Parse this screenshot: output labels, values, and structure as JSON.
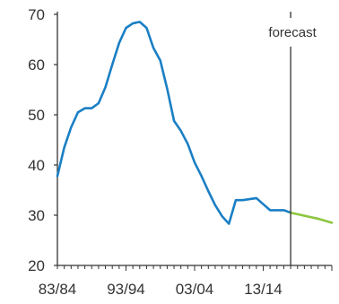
{
  "chart_data": {
    "type": "line",
    "title": "",
    "xlabel": "",
    "ylabel": "",
    "ylim": [
      20,
      70
    ],
    "yticks": [
      20,
      30,
      40,
      50,
      60,
      70
    ],
    "xtick_labels": [
      "83/84",
      "93/94",
      "03/04",
      "13/14"
    ],
    "xlim_years": [
      1983,
      2023
    ],
    "grid": false,
    "annotation": {
      "label": "forecast",
      "at_year": 2017
    },
    "series": [
      {
        "color": "#1a7fc4",
        "x": [
          1983,
          1984,
          1985,
          1986,
          1987,
          1988,
          1989,
          1990,
          1991,
          1992,
          1993,
          1994,
          1995,
          1996,
          1997,
          1998,
          1999,
          2000,
          2001,
          2002,
          2003,
          2004,
          2005,
          2006,
          2007,
          2008,
          2009,
          2010,
          2011,
          2012,
          2013,
          2014,
          2015,
          2016,
          2017
        ],
        "values": [
          37.8,
          43.5,
          47.5,
          50.5,
          51.3,
          51.3,
          52.3,
          55.5,
          60.0,
          64.3,
          67.3,
          68.2,
          68.5,
          67.3,
          63.3,
          60.8,
          55.2,
          48.8,
          46.8,
          44.2,
          40.5,
          37.8,
          34.8,
          32.0,
          29.8,
          28.3,
          33.0,
          33.0,
          33.2,
          33.4,
          32.2,
          31.0,
          31.0,
          31.0,
          30.5
        ]
      },
      {
        "color": "#8cc63f",
        "x": [
          2017,
          2018,
          2019,
          2020,
          2021,
          2022,
          2023
        ],
        "values": [
          30.5,
          30.2,
          29.9,
          29.6,
          29.3,
          28.9,
          28.5
        ]
      }
    ]
  },
  "colors": {
    "axis": "#333333",
    "text": "#333333"
  }
}
